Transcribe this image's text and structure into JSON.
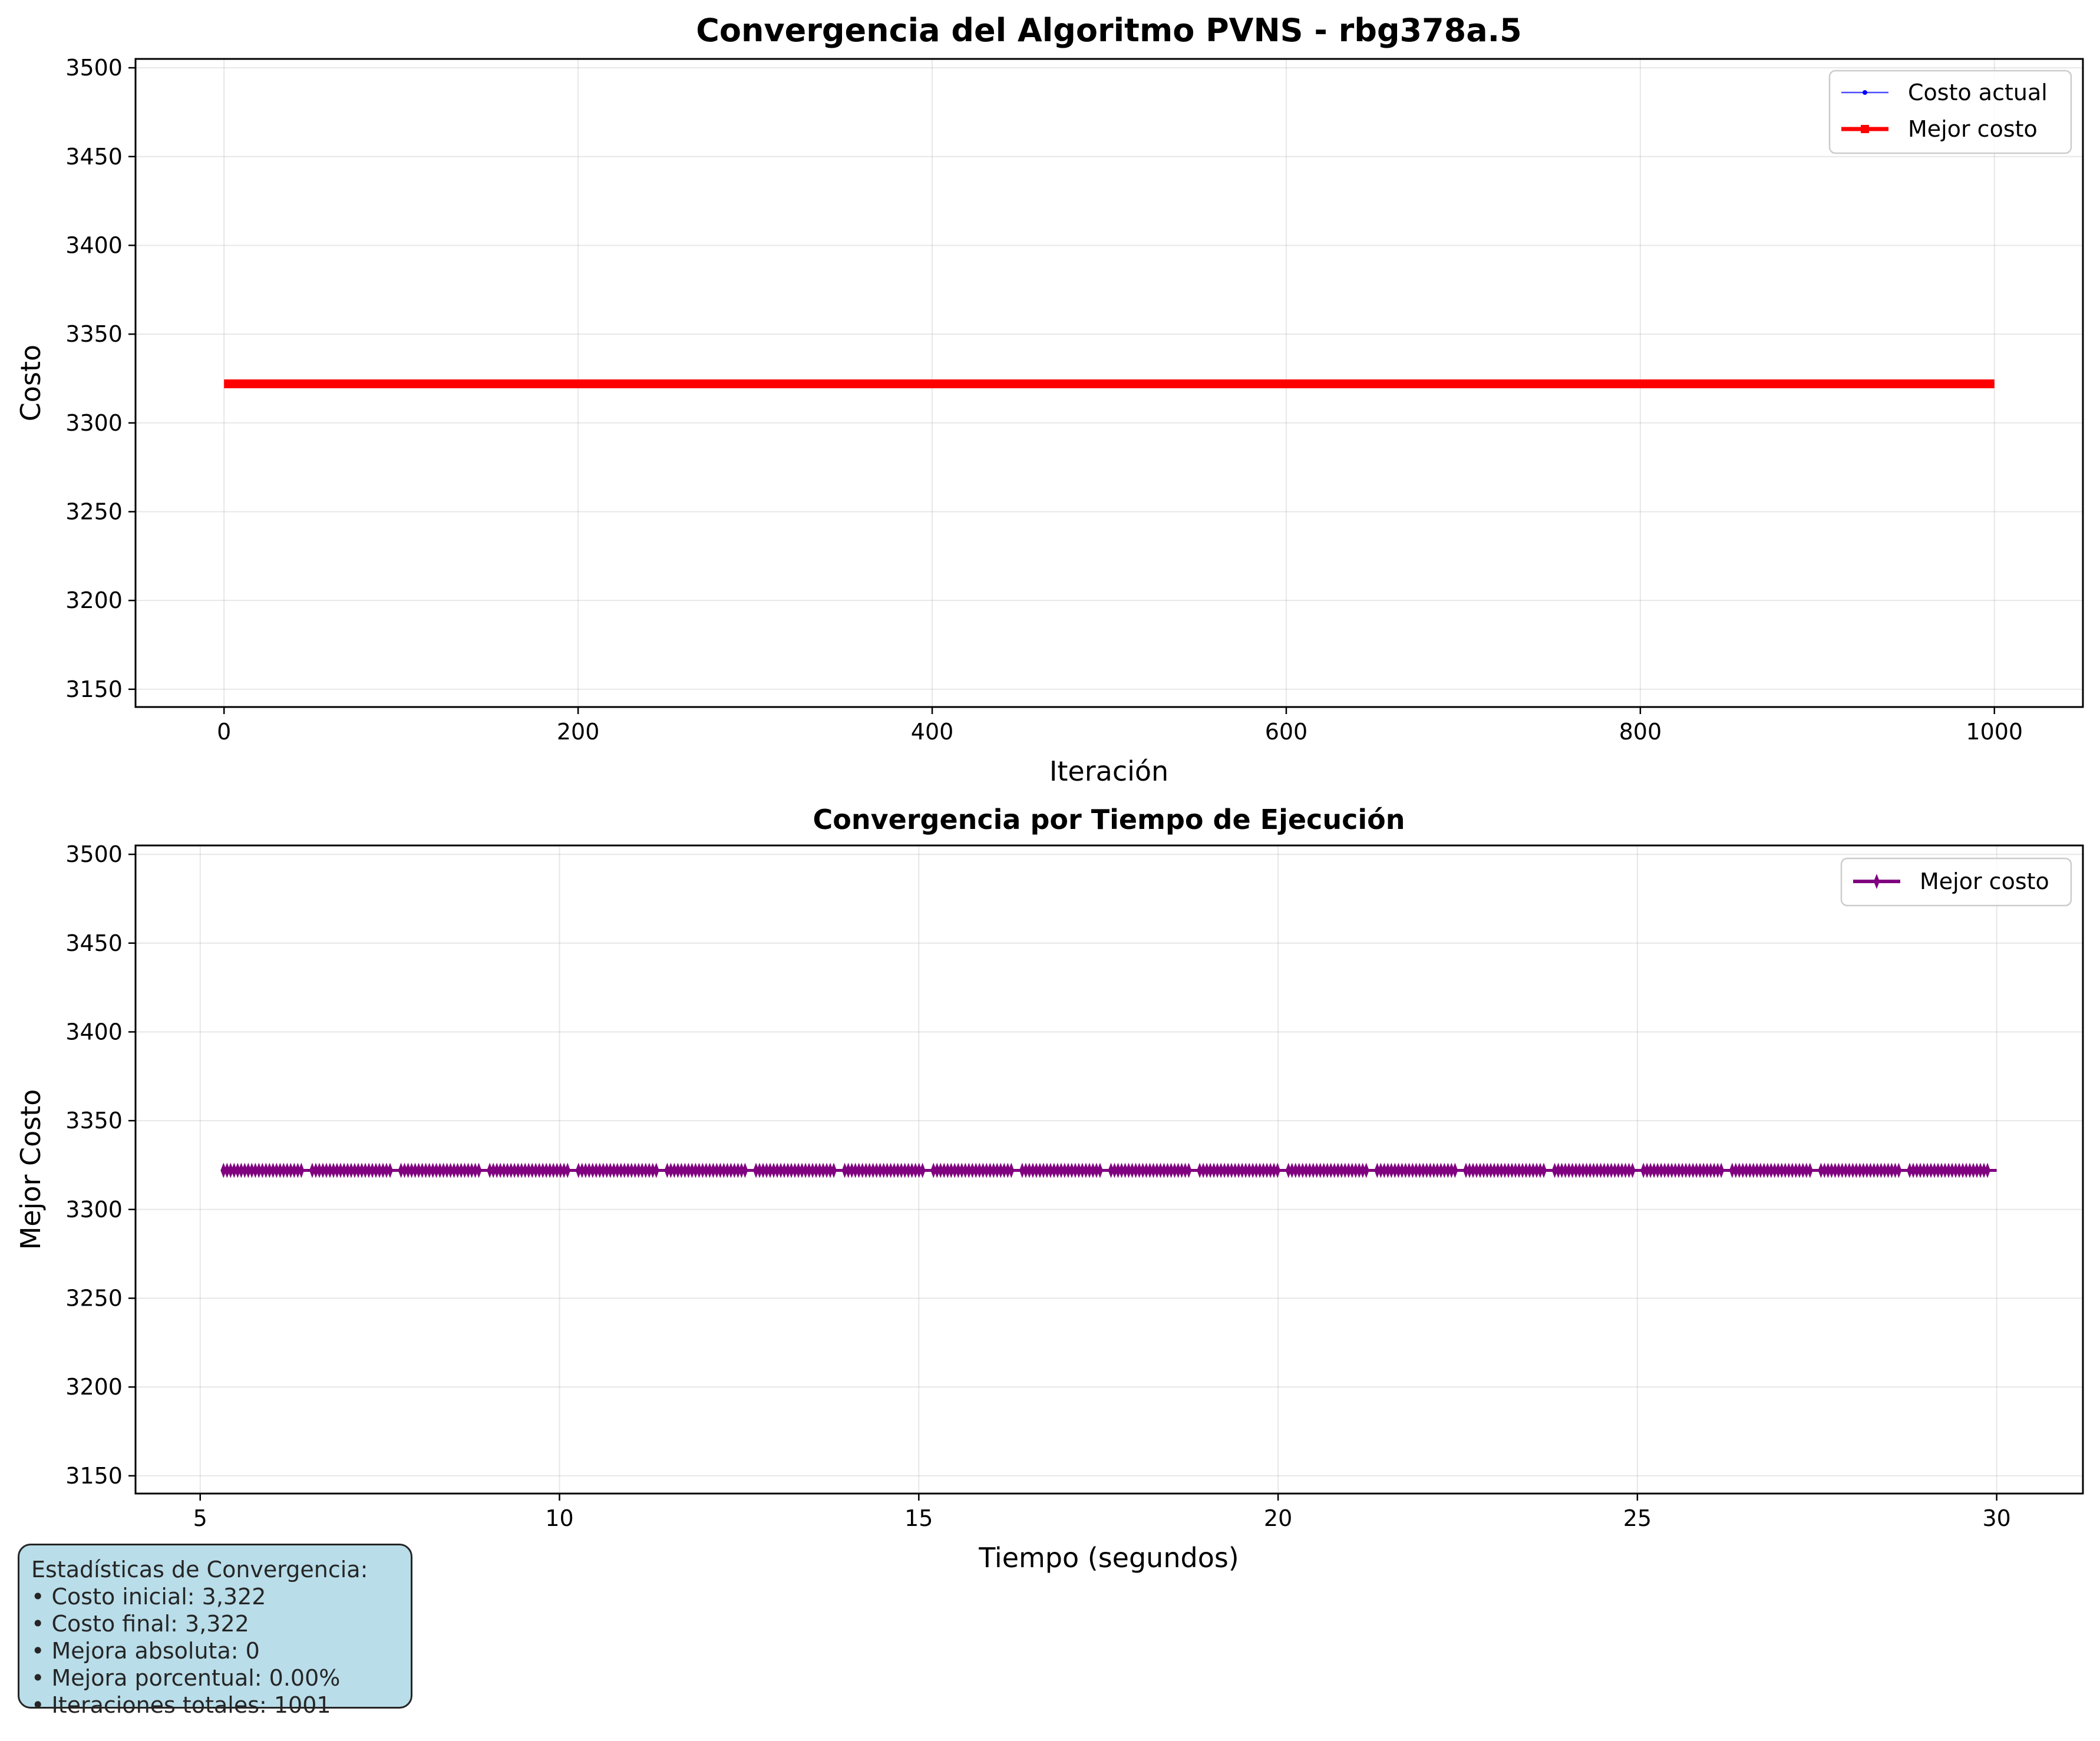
{
  "chart_data": [
    {
      "type": "line",
      "title": "Convergencia del Algoritmo PVNS - rbg378a.5",
      "xlabel": "Iteración",
      "ylabel": "Costo",
      "xlim": [
        -50,
        1050
      ],
      "ylim": [
        3140,
        3505
      ],
      "xticks": [
        0,
        200,
        400,
        600,
        800,
        1000
      ],
      "yticks": [
        3150,
        3200,
        3250,
        3300,
        3350,
        3400,
        3450,
        3500
      ],
      "grid": true,
      "legend_position": "top-right",
      "x_range": [
        0,
        1000
      ],
      "series": [
        {
          "name": "Costo actual",
          "color": "#0000ff",
          "marker": "circle",
          "constant_value": 3322
        },
        {
          "name": "Mejor costo",
          "color": "#ff0000",
          "marker": "square",
          "constant_value": 3322
        }
      ]
    },
    {
      "type": "line",
      "title": "Convergencia por Tiempo de Ejecución",
      "xlabel": "Tiempo (segundos)",
      "ylabel": "Mejor Costo",
      "xlim": [
        4.1,
        31.2
      ],
      "ylim": [
        3140,
        3505
      ],
      "xticks": [
        5,
        10,
        15,
        20,
        25,
        30
      ],
      "yticks": [
        3150,
        3200,
        3250,
        3300,
        3350,
        3400,
        3450,
        3500
      ],
      "grid": true,
      "legend_position": "top-right",
      "x_range": [
        5.3,
        30.0
      ],
      "series": [
        {
          "name": "Mejor costo",
          "color": "#800080",
          "marker": "thin-diamond",
          "constant_value": 3322
        }
      ]
    }
  ],
  "stats": {
    "heading": "Estadísticas de Convergencia:",
    "lines": [
      "• Costo inicial: 3,322",
      "• Costo final: 3,322",
      "• Mejora absoluta: 0",
      "• Mejora porcentual: 0.00%",
      "• Iteraciones totales: 1001"
    ]
  }
}
